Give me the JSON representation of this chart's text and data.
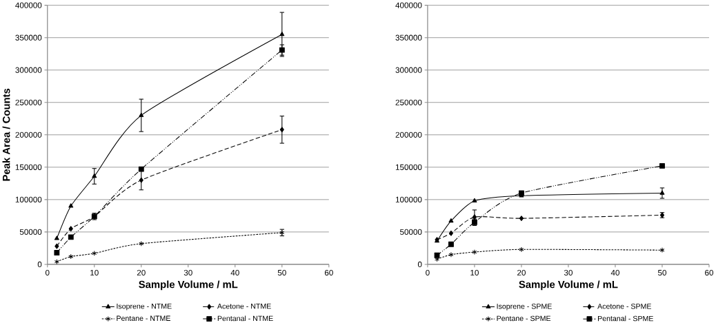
{
  "chart_data": [
    {
      "type": "line",
      "xlabel": "Sample Volume / mL",
      "ylabel": "Peak Area / Counts",
      "xlim": [
        0,
        60
      ],
      "xticks": [
        0,
        10,
        20,
        30,
        40,
        50,
        60
      ],
      "ylim": [
        0,
        400000
      ],
      "yticks": [
        0,
        50000,
        100000,
        150000,
        200000,
        250000,
        300000,
        350000,
        400000
      ],
      "grid": "y",
      "legend": "bottom",
      "x": [
        2,
        5,
        10,
        20,
        50
      ],
      "series": [
        {
          "name": "Isoprene - NTME",
          "color": "#000000",
          "marker": "triangle",
          "line_style": "solid",
          "values": [
            40000,
            90000,
            136000,
            230000,
            355000
          ],
          "errors": [
            null,
            null,
            12000,
            25000,
            34000
          ]
        },
        {
          "name": "Acetone - NTME",
          "color": "#000000",
          "marker": "diamond",
          "line_style": "dashed",
          "values": [
            28000,
            55000,
            74000,
            130000,
            208000
          ],
          "errors": [
            null,
            null,
            null,
            15000,
            21000
          ]
        },
        {
          "name": "Pentane - NTME",
          "color": "#000000",
          "marker": "cross",
          "line_style": "dotted",
          "values": [
            4000,
            12000,
            17000,
            32000,
            49000
          ],
          "errors": [
            null,
            null,
            null,
            null,
            5000
          ]
        },
        {
          "name": "Pentanal - NTME",
          "color": "#000000",
          "marker": "square",
          "line_style": "dashdotdotted",
          "values": [
            18000,
            42000,
            74000,
            147000,
            331000
          ],
          "errors": [
            null,
            null,
            5000,
            null,
            8000
          ]
        }
      ]
    },
    {
      "type": "line",
      "xlabel": "Sample Volume / mL",
      "xlim": [
        0,
        60
      ],
      "xticks": [
        0,
        10,
        20,
        30,
        40,
        50,
        60
      ],
      "ylim": [
        0,
        400000
      ],
      "yticks": [
        0,
        50000,
        100000,
        150000,
        200000,
        250000,
        300000,
        350000,
        400000
      ],
      "grid": "y",
      "legend": "bottom",
      "x": [
        2,
        5,
        10,
        20,
        50
      ],
      "series": [
        {
          "name": "Isoprene - SPME",
          "color": "#000000",
          "marker": "triangle",
          "line_style": "solid",
          "values": [
            36000,
            67000,
            98000,
            106000,
            110000
          ],
          "errors": [
            null,
            null,
            null,
            null,
            8000
          ]
        },
        {
          "name": "Acetone - SPME",
          "color": "#000000",
          "marker": "diamond",
          "line_style": "dashed",
          "values": [
            38000,
            48000,
            73000,
            71000,
            76000
          ],
          "errors": [
            null,
            null,
            11000,
            null,
            4000
          ]
        },
        {
          "name": "Pentane - SPME",
          "color": "#000000",
          "marker": "cross",
          "line_style": "dotted",
          "values": [
            8000,
            15000,
            19000,
            23000,
            22000
          ],
          "errors": [
            null,
            null,
            null,
            null,
            null
          ]
        },
        {
          "name": "Pentanal - SPME",
          "color": "#000000",
          "marker": "square",
          "line_style": "dashdotdotted",
          "values": [
            14000,
            31000,
            65000,
            110000,
            152000
          ],
          "errors": [
            null,
            null,
            5000,
            null,
            null
          ]
        }
      ]
    }
  ]
}
